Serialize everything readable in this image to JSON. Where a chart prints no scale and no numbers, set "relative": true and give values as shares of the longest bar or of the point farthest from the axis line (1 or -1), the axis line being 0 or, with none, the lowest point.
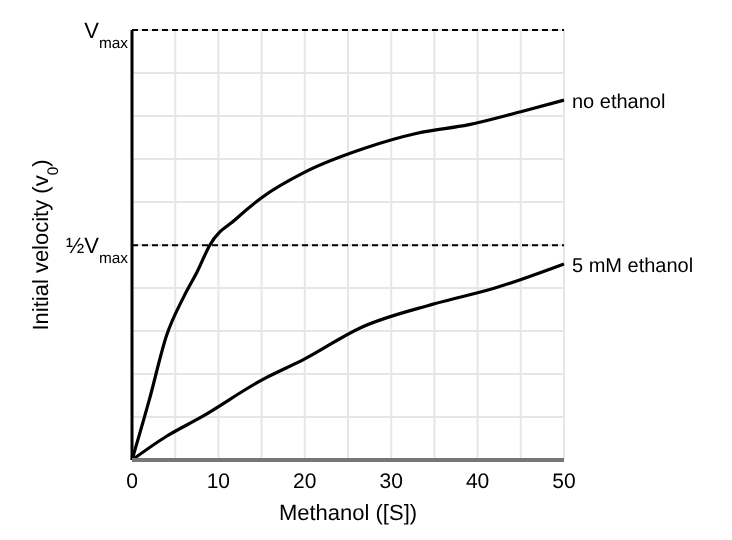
{
  "chart_data": {
    "type": "line",
    "xlabel": "Methanol ([S])",
    "ylabel": "Initial velocity (v$_{0}$)",
    "relative": true,
    "xlim": [
      0,
      50
    ],
    "xticks": [
      0,
      {
        "value": 5,
        "label": null
      },
      10,
      {
        "value": 15,
        "label": null
      },
      20,
      {
        "value": 25,
        "label": null
      },
      30,
      {
        "value": 35,
        "label": null
      },
      40,
      {
        "value": 45,
        "label": null
      },
      50
    ],
    "grid": true,
    "legend": false,
    "marker": "none",
    "line_style": "solid",
    "ref_lines": [
      {
        "axis": "y",
        "value": 1.195,
        "label": "V$_{max}$",
        "line_style": "dashed",
        "color": "#000000"
      },
      {
        "axis": "y",
        "value": 0.597,
        "label": "½V$_{max}$",
        "line_style": "dashed",
        "color": "#000000"
      }
    ],
    "series": [
      {
        "name": "no ethanol",
        "color": "#000000",
        "x": [
          0,
          2,
          4,
          6,
          7.6,
          9,
          12,
          15,
          20,
          27,
          33,
          39,
          45,
          50
        ],
        "values": [
          0,
          0.167,
          0.346,
          0.454,
          0.526,
          0.597,
          0.669,
          0.729,
          0.8,
          0.867,
          0.908,
          0.932,
          0.968,
          1
        ]
      },
      {
        "name": "5 mM ethanol",
        "color": "#000000",
        "x": [
          0,
          4,
          8,
          15,
          20,
          26.4,
          35,
          42,
          50
        ],
        "values": [
          0,
          0.066,
          0.119,
          0.222,
          0.281,
          0.367,
          0.434,
          0.478,
          0.545
        ]
      }
    ]
  }
}
